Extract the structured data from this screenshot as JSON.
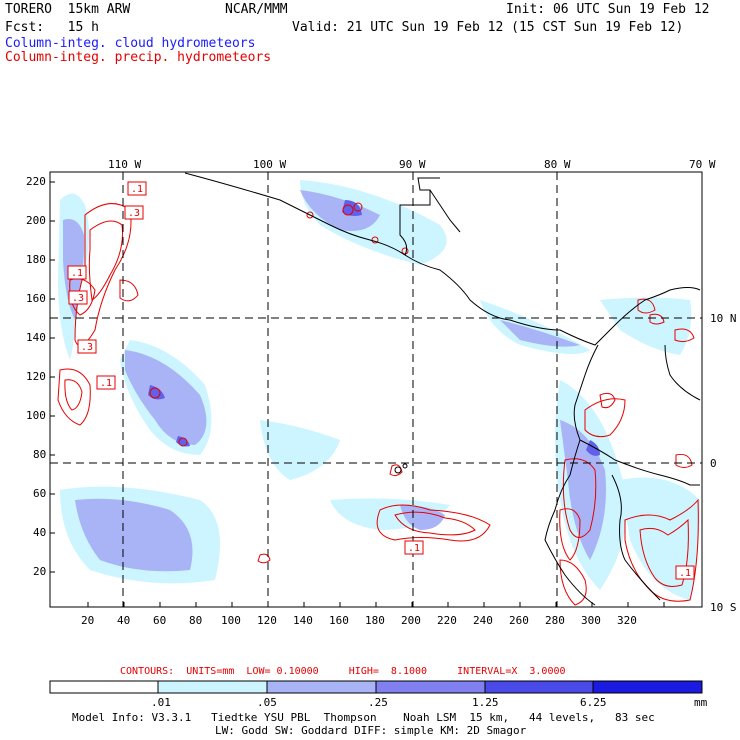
{
  "header": {
    "model": "TORERO  15km ARW",
    "org": "NCAR/MMM",
    "init": "Init: 06 UTC Sun 19 Feb 12",
    "fcst": "Fcst:   15 h",
    "valid": "Valid: 21 UTC Sun 19 Feb 12 (15 CST Sun 19 Feb 12)"
  },
  "legend": {
    "cloud": "Column-integ. cloud hydrometeors",
    "precip": "Column-integ. precip. hydrometeors",
    "cloud_color": "#1a1aff",
    "precip_color": "#e60000"
  },
  "map": {
    "top_lon_labels": [
      "110 W",
      "100 W",
      "90 W",
      "80 W",
      "70 W"
    ],
    "right_lat_labels": [
      "10 N",
      "0",
      "10 S"
    ],
    "y_grid_labels": [
      "220",
      "200",
      "180",
      "160",
      "140",
      "120",
      "100",
      "80",
      "60",
      "40",
      "20"
    ],
    "x_grid_labels": [
      "20",
      "40",
      "60",
      "80",
      "100",
      "120",
      "140",
      "160",
      "180",
      "200",
      "220",
      "240",
      "260",
      "280",
      "300",
      "320"
    ],
    "contour_labels": [
      ".1",
      ".3",
      ".1",
      ".3",
      ".3",
      ".1",
      ".1",
      ".1"
    ]
  },
  "contours_line": {
    "text": "CONTOURS:  UNITS=mm  LOW= 0.10000     HIGH=  8.1000     INTERVAL=X  3.0000"
  },
  "colorbar": {
    "ticks": [
      ".01",
      ".05",
      ".25",
      "1.25",
      "6.25"
    ],
    "unit": "mm",
    "colors": [
      "#ffffff",
      "#ccf5ff",
      "#a8b4f5",
      "#8080f0",
      "#4a4ae8",
      "#1a1ae0"
    ]
  },
  "model_info": {
    "line1": "Model Info: V3.3.1   Tiedtke YSU PBL  Thompson    Noah LSM  15 km,   44 levels,   83 sec",
    "line2": "LW: Godd SW: Goddard DIFF: simple KM: 2D Smagor"
  }
}
